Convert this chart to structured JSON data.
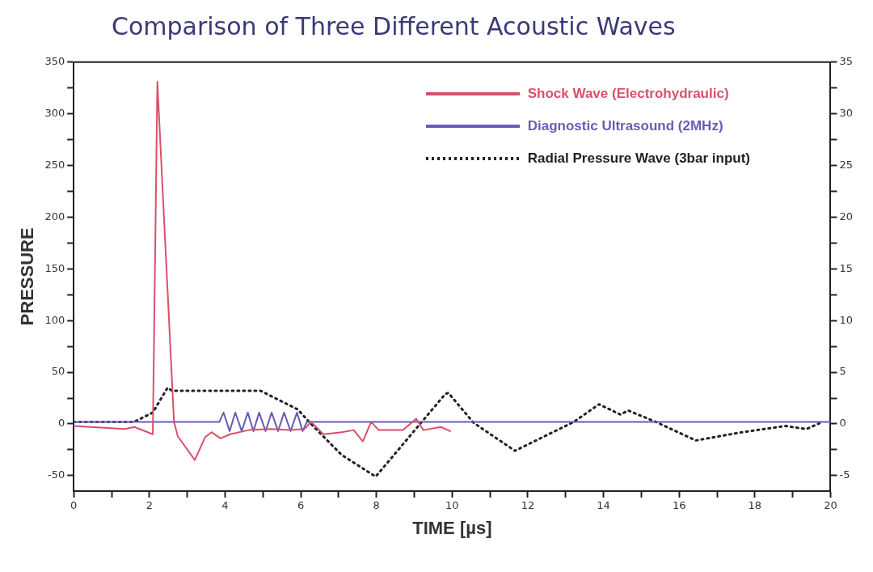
{
  "chart_data": {
    "type": "line",
    "title": "Comparison of Three Different Acoustic Waves",
    "xlabel": "TIME [µs]",
    "ylabel": "PRESSURE",
    "xlim": [
      0,
      20
    ],
    "xticks": [
      0,
      {
        "value": 1,
        "label": null
      },
      2,
      {
        "value": 3,
        "label": null
      },
      4,
      {
        "value": 5,
        "label": null
      },
      6,
      {
        "value": 7,
        "label": null
      },
      8,
      {
        "value": 9,
        "label": null
      },
      10,
      {
        "value": 11,
        "label": null
      },
      12,
      {
        "value": 13,
        "label": null
      },
      14,
      {
        "value": 15,
        "label": null
      },
      16,
      {
        "value": 17,
        "label": null
      },
      18,
      {
        "value": 19,
        "label": null
      },
      20
    ],
    "ylim": [
      -65,
      350
    ],
    "yticks": [
      -50,
      {
        "value": -25,
        "label": null
      },
      0,
      {
        "value": 25,
        "label": null
      },
      50,
      {
        "value": 75,
        "label": null
      },
      100,
      {
        "value": 125,
        "label": null
      },
      150,
      {
        "value": 175,
        "label": null
      },
      200,
      {
        "value": 225,
        "label": null
      },
      250,
      {
        "value": 275,
        "label": null
      },
      300,
      {
        "value": 325,
        "label": null
      },
      350
    ],
    "y2lim": [
      -6.5,
      35
    ],
    "y2ticks": [
      -5,
      {
        "value": -2.5,
        "label": null
      },
      0,
      {
        "value": 2.5,
        "label": null
      },
      5,
      {
        "value": 7.5,
        "label": null
      },
      10,
      {
        "value": 12.5,
        "label": null
      },
      15,
      {
        "value": 17.5,
        "label": null
      },
      20,
      {
        "value": 22.5,
        "label": null
      },
      25,
      {
        "value": 27.5,
        "label": null
      },
      30,
      {
        "value": 32.5,
        "label": null
      },
      35
    ],
    "grid": false,
    "legend": "top right",
    "marker": "none",
    "series": [
      {
        "name": "Shock Wave (Electrohydraulic)",
        "color": "#d9506a",
        "line_style": "solid",
        "x": [
          0,
          0.44,
          1.35,
          1.6,
          2.09,
          2.21,
          2.65,
          2.75,
          3.2,
          3.47,
          3.64,
          3.88,
          4.13,
          4.62,
          5.2,
          5.7,
          6.1,
          6.27,
          6.6,
          7.08,
          7.4,
          7.64,
          7.86,
          8.06,
          8.7,
          9.05,
          9.24,
          9.7,
          9.95
        ],
        "values": [
          -2,
          -3,
          -5,
          -3,
          -10,
          331,
          2,
          -12,
          -35,
          -13,
          -8,
          -14,
          -10,
          -6,
          -5,
          -6,
          -5,
          2,
          -10,
          -8,
          -6,
          -17,
          2,
          -6,
          -6,
          5,
          -6,
          -3,
          -7
        ]
      },
      {
        "name": "Diagnostic Ultrasound (2MHz)",
        "color": "#6b5bb5",
        "line_style": "solid",
        "x": [
          0,
          3.85,
          3.96,
          4.12,
          4.27,
          4.44,
          4.6,
          4.75,
          4.9,
          5.07,
          5.23,
          5.4,
          5.56,
          5.73,
          5.9,
          6.05,
          6.16,
          20
        ],
        "values": [
          2,
          2,
          11,
          -7,
          11,
          -7,
          11,
          -7,
          11,
          -7,
          11,
          -7,
          11,
          -7,
          11,
          -7,
          2,
          2
        ]
      },
      {
        "name": "Radial Pressure Wave (3bar input)",
        "color": "#222222",
        "line_style": "dotted",
        "axis": "y2",
        "x": [
          0,
          1.6,
          2.09,
          2.48,
          2.6,
          4.94,
          5.92,
          6.27,
          7.08,
          7.98,
          9.82,
          9.9,
          10.57,
          11.66,
          13.22,
          13.88,
          14.45,
          14.65,
          15.38,
          16.44,
          17.66,
          18.8,
          19.36,
          19.73
        ],
        "values": [
          0.2,
          0.2,
          1.1,
          3.5,
          3.2,
          3.2,
          1.4,
          0,
          -3,
          -5.1,
          2.9,
          3,
          0.1,
          -2.6,
          0.2,
          1.9,
          0.9,
          1.3,
          0.2,
          -1.6,
          -0.8,
          -0.2,
          -0.5,
          0.1
        ]
      }
    ]
  }
}
